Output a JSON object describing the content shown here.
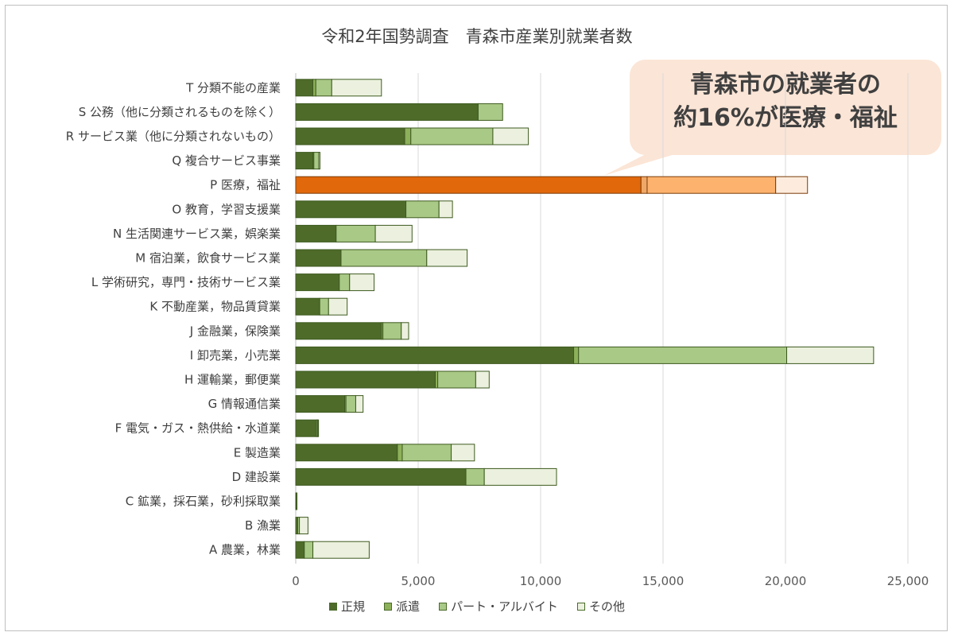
{
  "chart_data": {
    "type": "bar",
    "orientation": "horizontal",
    "stacked": true,
    "title": "令和2年国勢調査　青森市産業別就業者数",
    "categories": [
      "T 分類不能の産業",
      "S 公務（他に分類されるものを除く）",
      "R サービス業（他に分類されないもの）",
      "Q 複合サービス事業",
      "P 医療，福祉",
      "O 教育，学習支援業",
      "N 生活関連サービス業，娯楽業",
      "M 宿泊業，飲食サービス業",
      "L 学術研究，専門・技術サービス業",
      "K 不動産業，物品賃貸業",
      "J 金融業，保険業",
      "I 卸売業，小売業",
      "H 運輸業，郵便業",
      "G 情報通信業",
      "F 電気・ガス・熱供給・水道業",
      "E 製造業",
      "D 建設業",
      "C 鉱業，採石業，砂利採取業",
      "B 漁業",
      "A 農業，林業"
    ],
    "series": [
      {
        "name": "正規",
        "color": "#4e6b2a",
        "values": [
          700,
          7450,
          4450,
          700,
          14100,
          4500,
          1650,
          1850,
          1780,
          980,
          3500,
          11350,
          5700,
          2000,
          850,
          4150,
          6950,
          30,
          80,
          350
        ]
      },
      {
        "name": "派遣",
        "color": "#8db05a",
        "values": [
          120,
          0,
          250,
          40,
          250,
          0,
          0,
          0,
          0,
          0,
          60,
          200,
          100,
          50,
          0,
          200,
          0,
          0,
          0,
          0
        ]
      },
      {
        "name": "パート・アルバイト",
        "color": "#a9c986",
        "values": [
          650,
          1000,
          3350,
          200,
          5250,
          1350,
          1600,
          3500,
          420,
          360,
          750,
          8500,
          1550,
          400,
          50,
          2000,
          750,
          0,
          70,
          350
        ]
      },
      {
        "name": "その他",
        "color": "#ebf1de",
        "values": [
          2030,
          0,
          1450,
          50,
          1300,
          550,
          1500,
          1650,
          1000,
          760,
          300,
          3550,
          550,
          300,
          30,
          950,
          2950,
          20,
          350,
          2300
        ]
      }
    ],
    "highlight": {
      "category": "P 医療，福祉",
      "colors": [
        "#e2680c",
        "#f0a868",
        "#fdb36e",
        "#fdecdd"
      ]
    },
    "xlim": [
      0,
      25000
    ],
    "xticks": [
      "0",
      "5,000",
      "10,000",
      "15,000",
      "20,000",
      "25,000"
    ],
    "grid": true,
    "legend_position": "bottom"
  },
  "annotation": {
    "line1": "青森市の就業者の",
    "line2": "約16%が医療・福祉"
  }
}
